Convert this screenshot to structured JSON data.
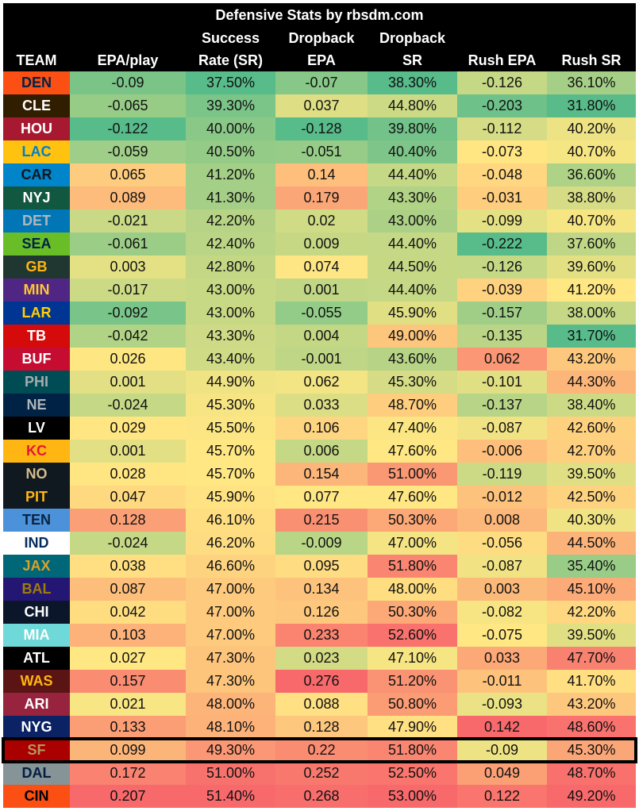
{
  "title": "Defensive Stats by rbsdm.com",
  "headers": [
    [
      "",
      "TEAM"
    ],
    [
      "",
      "EPA/play"
    ],
    [
      "Success",
      "Rate (SR)"
    ],
    [
      "Dropback",
      "EPA"
    ],
    [
      "Dropback",
      "SR"
    ],
    [
      "",
      "Rush EPA"
    ],
    [
      "",
      "Rush SR"
    ]
  ],
  "highlighted_team": "SF",
  "colors": {
    "scale_good": "#57bb8a",
    "scale_mid": "#ffe783",
    "scale_bad": "#f8696b"
  },
  "chart_data": {
    "type": "table",
    "title": "Defensive Stats by rbsdm.com",
    "columns": [
      "TEAM",
      "EPA/play",
      "Success Rate (SR)",
      "Dropback EPA",
      "Dropback SR",
      "Rush EPA",
      "Rush SR"
    ],
    "rows": [
      {
        "team": "DEN",
        "team_bg": "#FB4F14",
        "team_fg": "#002244",
        "values": [
          "-0.09",
          "37.50%",
          "-0.07",
          "38.30%",
          "-0.126",
          "36.10%"
        ]
      },
      {
        "team": "CLE",
        "team_bg": "#311D00",
        "team_fg": "#FFFFFF",
        "values": [
          "-0.065",
          "39.30%",
          "0.037",
          "44.80%",
          "-0.203",
          "31.80%"
        ]
      },
      {
        "team": "HOU",
        "team_bg": "#A71930",
        "team_fg": "#FFFFFF",
        "values": [
          "-0.122",
          "40.00%",
          "-0.128",
          "39.80%",
          "-0.112",
          "40.20%"
        ]
      },
      {
        "team": "LAC",
        "team_bg": "#FFC20E",
        "team_fg": "#0080C6",
        "values": [
          "-0.059",
          "40.50%",
          "-0.051",
          "40.40%",
          "-0.073",
          "40.70%"
        ]
      },
      {
        "team": "CAR",
        "team_bg": "#0085CA",
        "team_fg": "#101820",
        "values": [
          "0.065",
          "41.20%",
          "0.14",
          "44.40%",
          "-0.048",
          "36.60%"
        ]
      },
      {
        "team": "NYJ",
        "team_bg": "#125740",
        "team_fg": "#FFFFFF",
        "values": [
          "0.089",
          "41.30%",
          "0.179",
          "43.30%",
          "-0.031",
          "38.80%"
        ]
      },
      {
        "team": "DET",
        "team_bg": "#0076B6",
        "team_fg": "#B0B7BC",
        "values": [
          "-0.021",
          "42.20%",
          "0.02",
          "43.00%",
          "-0.099",
          "40.70%"
        ]
      },
      {
        "team": "SEA",
        "team_bg": "#69BE28",
        "team_fg": "#002244",
        "values": [
          "-0.061",
          "42.40%",
          "0.009",
          "44.40%",
          "-0.222",
          "37.60%"
        ]
      },
      {
        "team": "GB",
        "team_bg": "#203731",
        "team_fg": "#FFB612",
        "values": [
          "0.003",
          "42.80%",
          "0.074",
          "44.50%",
          "-0.126",
          "39.60%"
        ]
      },
      {
        "team": "MIN",
        "team_bg": "#4F2683",
        "team_fg": "#FFC62F",
        "values": [
          "-0.017",
          "43.00%",
          "0.001",
          "44.40%",
          "-0.039",
          "41.20%"
        ]
      },
      {
        "team": "LAR",
        "team_bg": "#003594",
        "team_fg": "#FFD100",
        "values": [
          "-0.092",
          "43.00%",
          "-0.055",
          "45.90%",
          "-0.157",
          "38.00%"
        ]
      },
      {
        "team": "TB",
        "team_bg": "#D50A0A",
        "team_fg": "#FFFFFF",
        "values": [
          "-0.042",
          "43.30%",
          "0.004",
          "49.00%",
          "-0.135",
          "31.70%"
        ]
      },
      {
        "team": "BUF",
        "team_bg": "#C60C30",
        "team_fg": "#FFFFFF",
        "values": [
          "0.026",
          "43.40%",
          "-0.001",
          "43.60%",
          "0.062",
          "43.20%"
        ]
      },
      {
        "team": "PHI",
        "team_bg": "#004C54",
        "team_fg": "#A5ACAF",
        "values": [
          "0.001",
          "44.90%",
          "0.062",
          "45.30%",
          "-0.101",
          "44.30%"
        ]
      },
      {
        "team": "NE",
        "team_bg": "#002244",
        "team_fg": "#B0B7BC",
        "values": [
          "-0.024",
          "45.30%",
          "0.033",
          "48.70%",
          "-0.137",
          "38.40%"
        ]
      },
      {
        "team": "LV",
        "team_bg": "#000000",
        "team_fg": "#FFFFFF",
        "values": [
          "0.029",
          "45.50%",
          "0.106",
          "47.40%",
          "-0.087",
          "42.60%"
        ]
      },
      {
        "team": "KC",
        "team_bg": "#FFB612",
        "team_fg": "#E31837",
        "values": [
          "0.001",
          "45.70%",
          "0.006",
          "47.60%",
          "-0.006",
          "42.70%"
        ]
      },
      {
        "team": "NO",
        "team_bg": "#101820",
        "team_fg": "#D3BC8D",
        "values": [
          "0.028",
          "45.70%",
          "0.154",
          "51.00%",
          "-0.119",
          "39.50%"
        ]
      },
      {
        "team": "PIT",
        "team_bg": "#101820",
        "team_fg": "#FFB612",
        "values": [
          "0.047",
          "45.90%",
          "0.077",
          "47.60%",
          "-0.012",
          "42.50%"
        ]
      },
      {
        "team": "TEN",
        "team_bg": "#4B92DB",
        "team_fg": "#0C2340",
        "values": [
          "0.128",
          "46.10%",
          "0.215",
          "50.30%",
          "0.008",
          "40.30%"
        ]
      },
      {
        "team": "IND",
        "team_bg": "#FFFFFF",
        "team_fg": "#002C5F",
        "values": [
          "-0.024",
          "46.20%",
          "-0.009",
          "47.00%",
          "-0.056",
          "44.50%"
        ]
      },
      {
        "team": "JAX",
        "team_bg": "#006778",
        "team_fg": "#D7A22A",
        "values": [
          "0.038",
          "46.60%",
          "0.095",
          "51.80%",
          "-0.087",
          "35.40%"
        ]
      },
      {
        "team": "BAL",
        "team_bg": "#241773",
        "team_fg": "#9E7C0C",
        "values": [
          "0.087",
          "47.00%",
          "0.134",
          "48.00%",
          "0.003",
          "45.10%"
        ]
      },
      {
        "team": "CHI",
        "team_bg": "#0B162A",
        "team_fg": "#FFFFFF",
        "values": [
          "0.042",
          "47.00%",
          "0.126",
          "50.30%",
          "-0.082",
          "42.20%"
        ]
      },
      {
        "team": "MIA",
        "team_bg": "#6FD8D8",
        "team_fg": "#FFFFFF",
        "values": [
          "0.103",
          "47.00%",
          "0.233",
          "52.60%",
          "-0.075",
          "39.50%"
        ]
      },
      {
        "team": "ATL",
        "team_bg": "#000000",
        "team_fg": "#FFFFFF",
        "values": [
          "0.027",
          "47.30%",
          "0.023",
          "47.10%",
          "0.033",
          "47.70%"
        ]
      },
      {
        "team": "WAS",
        "team_bg": "#5A1414",
        "team_fg": "#FFB612",
        "values": [
          "0.157",
          "47.30%",
          "0.276",
          "51.20%",
          "-0.011",
          "41.70%"
        ]
      },
      {
        "team": "ARI",
        "team_bg": "#97233F",
        "team_fg": "#FFFFFF",
        "values": [
          "0.021",
          "48.00%",
          "0.088",
          "50.80%",
          "-0.093",
          "43.20%"
        ]
      },
      {
        "team": "NYG",
        "team_bg": "#0B2265",
        "team_fg": "#FFFFFF",
        "values": [
          "0.133",
          "48.10%",
          "0.128",
          "47.90%",
          "0.142",
          "48.60%"
        ]
      },
      {
        "team": "SF",
        "team_bg": "#AA0000",
        "team_fg": "#B3995D",
        "values": [
          "0.099",
          "49.30%",
          "0.22",
          "51.80%",
          "-0.09",
          "45.30%"
        ]
      },
      {
        "team": "DAL",
        "team_bg": "#869397",
        "team_fg": "#041E42",
        "values": [
          "0.172",
          "51.00%",
          "0.252",
          "52.50%",
          "0.049",
          "48.70%"
        ]
      },
      {
        "team": "CIN",
        "team_bg": "#FB4F14",
        "team_fg": "#000000",
        "values": [
          "0.207",
          "51.40%",
          "0.268",
          "53.00%",
          "0.122",
          "49.20%"
        ]
      }
    ]
  }
}
